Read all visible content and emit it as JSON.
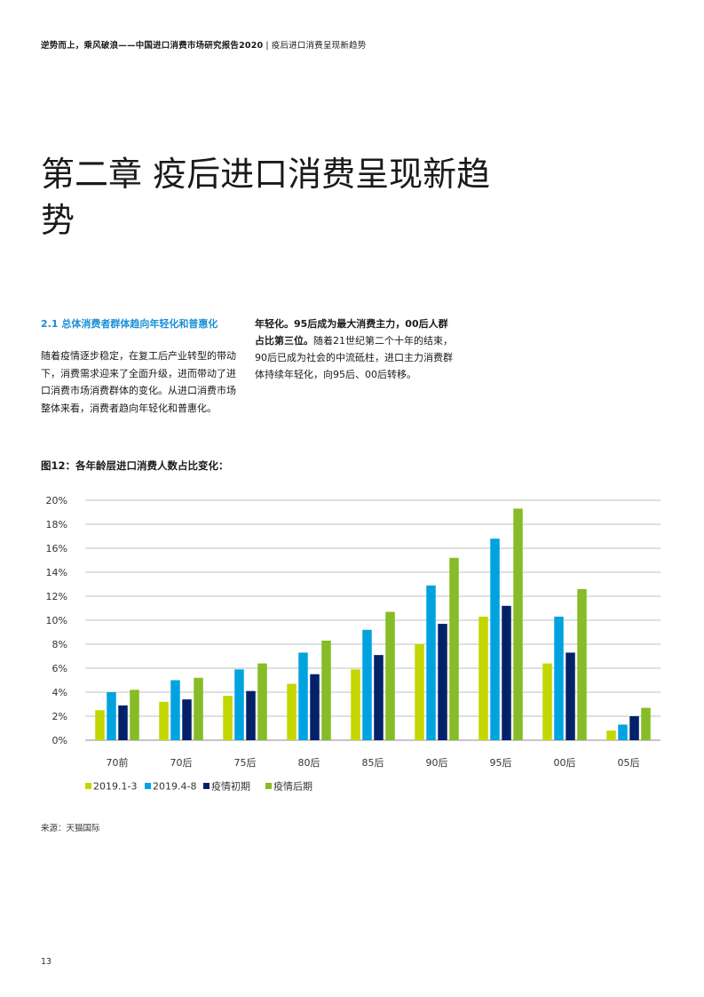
{
  "header": {
    "report_title": "逆势而上，乘风破浪——中国进口消费市场研究报告2020",
    "separator": "|",
    "section": "疫后进口消费呈现新趋势"
  },
  "chapter": {
    "title": "第二章 疫后进口消费呈现新趋势"
  },
  "section_2_1": {
    "heading": "2.1 总体消费者群体趋向年轻化和普惠化",
    "para_left": "随着疫情逐步稳定，在复工后产业转型的带动下，消费需求迎来了全面升级，进而带动了进口消费市场消费群体的变化。从进口消费市场整体来看，消费者趋向年轻化和普惠化。",
    "para_right_bold": "年轻化。95后成为最大消费主力，00后人群占比第三位。",
    "para_right_rest": "随着21世纪第二个十年的结束，90后已成为社会的中流砥柱，进口主力消费群体持续年轻化，向95后、00后转移。"
  },
  "figure": {
    "title": "图12：各年龄层进口消费人数占比变化："
  },
  "chart_data": {
    "type": "bar",
    "title": "图12：各年龄层进口消费人数占比变化：",
    "categories": [
      "70前",
      "70后",
      "75后",
      "80后",
      "85后",
      "90后",
      "95后",
      "00后",
      "05后"
    ],
    "series": [
      {
        "name": "2019.1-3",
        "color": "#c4d600",
        "values": [
          2.5,
          3.2,
          3.7,
          4.7,
          5.9,
          8.0,
          10.3,
          6.4,
          0.8
        ]
      },
      {
        "name": "2019.4-8",
        "color": "#00a3e0",
        "values": [
          4.0,
          5.0,
          5.9,
          7.3,
          9.2,
          12.9,
          16.8,
          10.3,
          1.3
        ]
      },
      {
        "name": "疫情初期",
        "color": "#012169",
        "values": [
          2.9,
          3.4,
          4.1,
          5.5,
          7.1,
          9.7,
          11.2,
          7.3,
          2.0
        ]
      },
      {
        "name": "疫情后期",
        "color": "#86bc25",
        "values": [
          4.2,
          5.2,
          6.4,
          8.3,
          10.7,
          15.2,
          19.3,
          12.6,
          2.7
        ]
      }
    ],
    "ylim": [
      0,
      20
    ],
    "yticks": [
      "0%",
      "2%",
      "4%",
      "6%",
      "8%",
      "10%",
      "12%",
      "14%",
      "16%",
      "18%",
      "20%"
    ],
    "xlabel": "",
    "ylabel": "",
    "grid": true,
    "legend_position": "bottom-left"
  },
  "source": "来源：天猫国际",
  "page_number": "13"
}
